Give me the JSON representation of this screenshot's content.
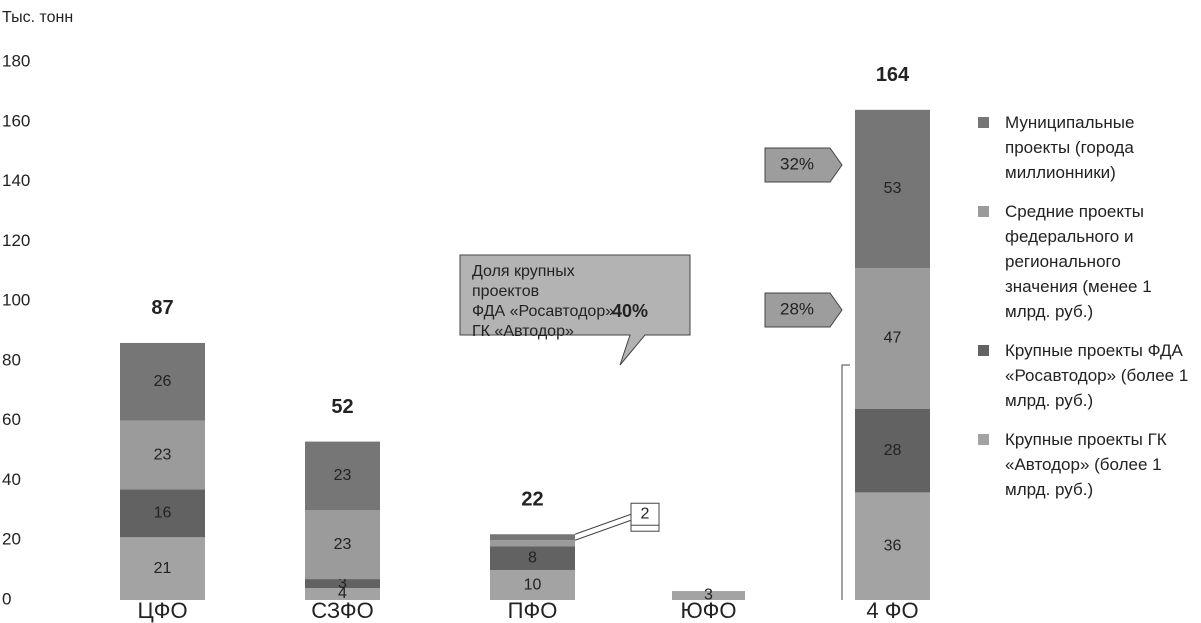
{
  "chart_data": {
    "type": "stacked_bar",
    "y_label": "Тыс. тонн",
    "categories": [
      "ЦФО",
      "СЗФО",
      "ПФО",
      "ЮФО",
      "4 ФО"
    ],
    "series": [
      {
        "name": "Крупные проекты ГК «Автодор» (более 1 млрд. руб.)",
        "color": "#a3a3a3",
        "values": [
          21,
          4,
          10,
          3,
          36
        ]
      },
      {
        "name": "Крупные проекты ФДА «Росавтодор» (более 1 млрд. руб.)",
        "color": "#626262",
        "values": [
          16,
          3,
          8,
          null,
          28
        ]
      },
      {
        "name": "Средние проекты федерального и регионального значения (менее 1 млрд. руб.)",
        "color": "#9b9b9b",
        "values": [
          23,
          23,
          2,
          null,
          47
        ]
      },
      {
        "name": "Муниципальные проекты (города миллионники)",
        "color": "#767676",
        "values": [
          26,
          23,
          2,
          null,
          53
        ]
      }
    ],
    "totals": [
      87,
      52,
      22,
      null,
      164
    ],
    "annotations": [
      "32%",
      "28%"
    ],
    "share_box": {
      "lines": [
        "Доля крупных",
        "проектов",
        "ФДА «Росавтодор»",
        "ГК «Автодор»"
      ],
      "value_label": "40%"
    },
    "ylim": [
      0,
      180
    ],
    "yticks": [
      0,
      20,
      40,
      60,
      80,
      100,
      120,
      140,
      160,
      180
    ],
    "legend": "right"
  }
}
